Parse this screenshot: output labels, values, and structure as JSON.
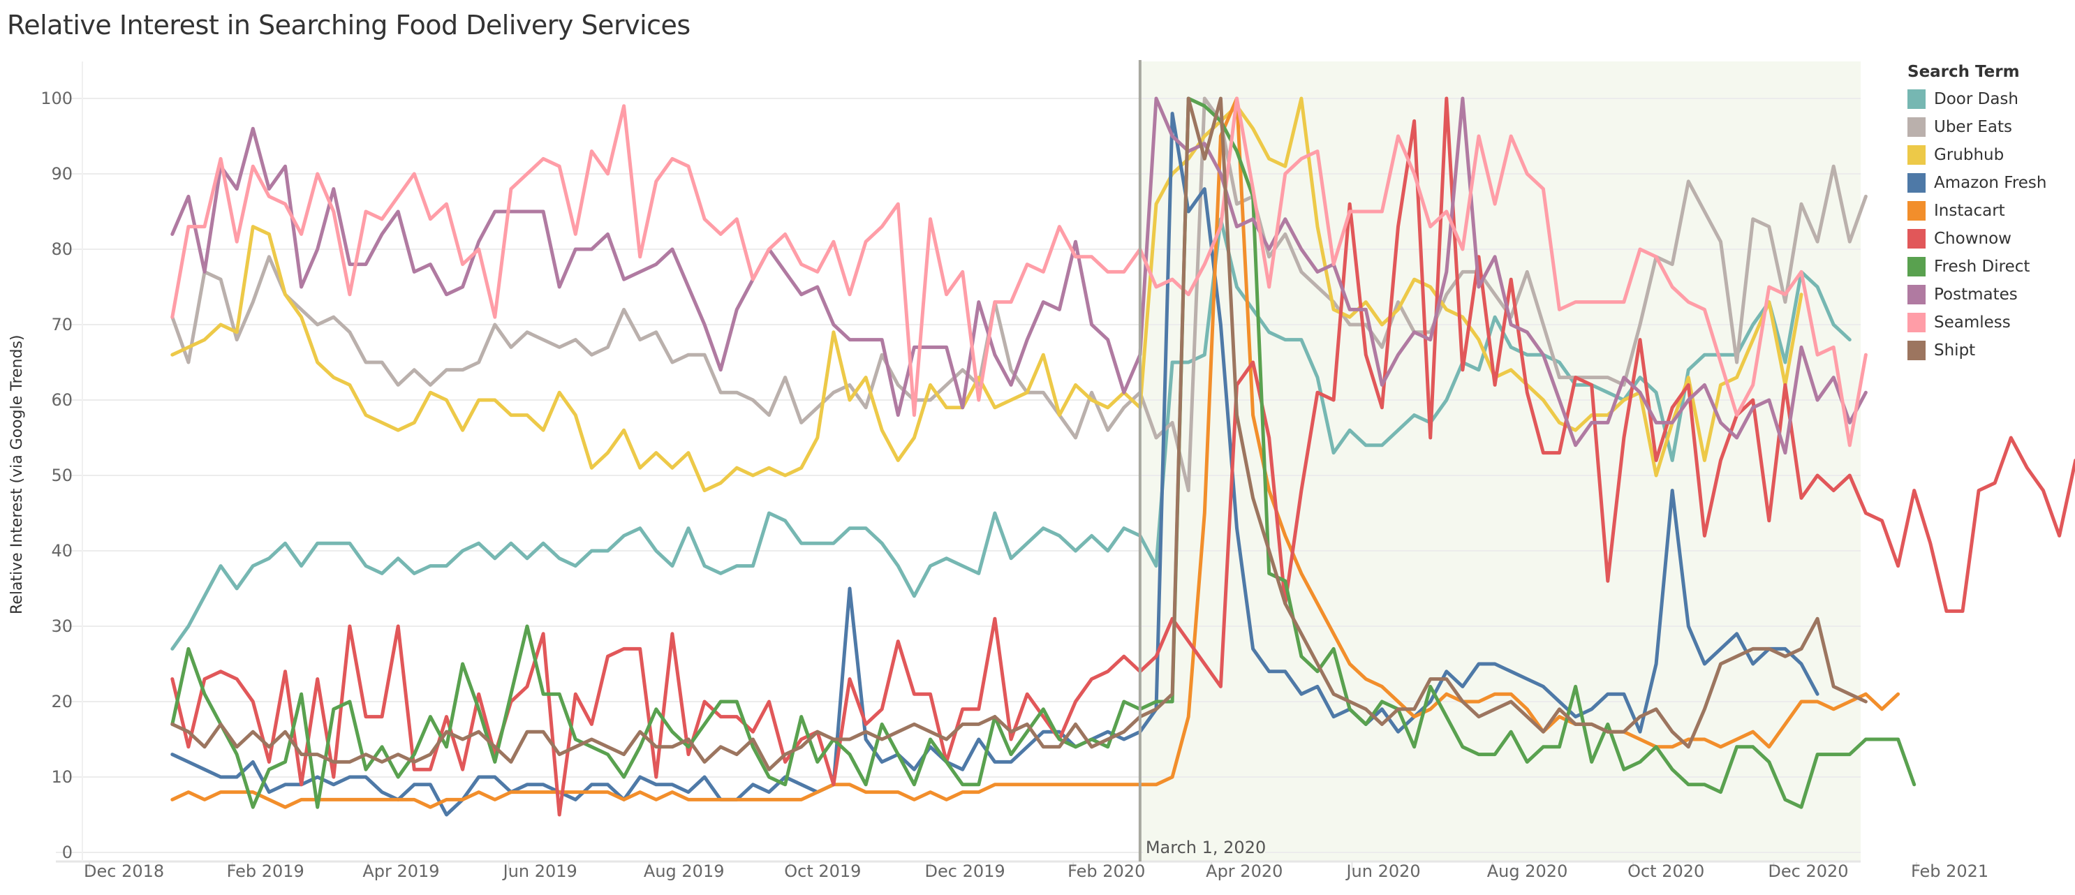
{
  "title": "Relative Interest in Searching Food Delivery Services",
  "legend": {
    "title": "Search Term",
    "items": [
      {
        "label": "Door Dash",
        "color": "#76b7b2"
      },
      {
        "label": "Uber Eats",
        "color": "#bab0ac"
      },
      {
        "label": "Grubhub",
        "color": "#edc948"
      },
      {
        "label": "Amazon Fresh",
        "color": "#4e79a7"
      },
      {
        "label": "Instacart",
        "color": "#f28e2b"
      },
      {
        "label": "Chownow",
        "color": "#e15759"
      },
      {
        "label": "Fresh Direct",
        "color": "#59a14f"
      },
      {
        "label": "Postmates",
        "color": "#b07aa1"
      },
      {
        "label": "Seamless",
        "color": "#ff9da7"
      },
      {
        "label": "Shipt",
        "color": "#9c755f"
      }
    ]
  },
  "annotation": {
    "label": "March 1, 2020",
    "date": "2020-03-01",
    "shade_color": "#f5f8ef",
    "line_color": "#a8a8a0"
  },
  "chart_data": {
    "type": "line",
    "title": "Relative Interest in Searching Food Delivery Services",
    "xlabel": "",
    "ylabel": "Relative Interest (via Google Trends)",
    "ylim": [
      0,
      100
    ],
    "yticks": [
      0,
      10,
      20,
      30,
      40,
      50,
      60,
      70,
      80,
      90,
      100
    ],
    "xticks": [
      "Dec 2018",
      "Feb 2019",
      "Apr 2019",
      "Jun 2019",
      "Aug 2019",
      "Oct 2019",
      "Dec 2019",
      "Feb 2020",
      "Apr 2020",
      "Jun 2020",
      "Aug 2020",
      "Oct 2020",
      "Dec 2020",
      "Feb 2021"
    ],
    "xrange": [
      "2018-12-01",
      "2021-02-01"
    ],
    "x_start": "2019-01-06",
    "x_step_days": 7,
    "grid": true,
    "legend_position": "right",
    "series": [
      {
        "name": "Door Dash",
        "values": [
          27,
          30,
          34,
          38,
          35,
          38,
          39,
          41,
          38,
          41,
          41,
          41,
          38,
          37,
          39,
          37,
          38,
          38,
          40,
          41,
          39,
          41,
          39,
          41,
          39,
          38,
          40,
          40,
          42,
          43,
          40,
          38,
          43,
          38,
          37,
          38,
          38,
          45,
          44,
          41,
          41,
          41,
          43,
          43,
          41,
          38,
          34,
          38,
          39,
          38,
          37,
          45,
          39,
          41,
          43,
          42,
          40,
          42,
          40,
          43,
          42,
          38,
          65,
          65,
          66,
          84,
          75,
          72,
          69,
          68,
          68,
          63,
          53,
          56,
          54,
          54,
          56,
          58,
          57,
          60,
          65,
          64,
          71,
          67,
          66,
          66,
          65,
          62,
          62,
          61,
          60,
          63,
          61,
          52,
          64,
          66,
          66,
          66,
          70,
          73,
          65,
          77,
          75,
          70,
          68
        ]
      },
      {
        "name": "Uber Eats",
        "values": [
          71,
          65,
          77,
          76,
          68,
          73,
          79,
          74,
          72,
          70,
          71,
          69,
          65,
          65,
          62,
          64,
          62,
          64,
          64,
          65,
          70,
          67,
          69,
          68,
          67,
          68,
          66,
          67,
          72,
          68,
          69,
          65,
          66,
          66,
          61,
          61,
          60,
          58,
          63,
          57,
          59,
          61,
          62,
          59,
          66,
          62,
          60,
          60,
          62,
          64,
          62,
          73,
          64,
          61,
          61,
          58,
          55,
          61,
          56,
          59,
          61,
          55,
          57,
          48,
          100,
          97,
          86,
          87,
          79,
          82,
          77,
          75,
          73,
          70,
          70,
          67,
          73,
          69,
          69,
          74,
          77,
          77,
          74,
          71,
          77,
          70,
          63,
          63,
          63,
          63,
          62,
          70,
          79,
          78,
          89,
          85,
          81,
          65,
          84,
          83,
          73,
          86,
          81,
          91,
          81,
          87
        ]
      },
      {
        "name": "Grubhub",
        "values": [
          66,
          67,
          68,
          70,
          69,
          83,
          82,
          74,
          71,
          65,
          63,
          62,
          58,
          57,
          56,
          57,
          61,
          60,
          56,
          60,
          60,
          58,
          58,
          56,
          61,
          58,
          51,
          53,
          56,
          51,
          53,
          51,
          53,
          48,
          49,
          51,
          50,
          51,
          50,
          51,
          55,
          69,
          60,
          63,
          56,
          52,
          55,
          62,
          59,
          59,
          63,
          59,
          60,
          61,
          66,
          58,
          62,
          60,
          59,
          61,
          59,
          86,
          90,
          92,
          95,
          97,
          99,
          96,
          92,
          91,
          100,
          83,
          72,
          71,
          73,
          70,
          72,
          76,
          75,
          72,
          71,
          68,
          63,
          64,
          62,
          60,
          57,
          56,
          58,
          58,
          60,
          61,
          50,
          57,
          63,
          52,
          62,
          63,
          68,
          73,
          62,
          74
        ]
      },
      {
        "name": "Amazon Fresh",
        "values": [
          13,
          12,
          11,
          10,
          10,
          12,
          8,
          9,
          9,
          10,
          9,
          10,
          10,
          8,
          7,
          9,
          9,
          5,
          7,
          10,
          10,
          8,
          9,
          9,
          8,
          7,
          9,
          9,
          7,
          10,
          9,
          9,
          8,
          10,
          7,
          7,
          9,
          8,
          10,
          9,
          8,
          9,
          35,
          15,
          12,
          13,
          11,
          14,
          12,
          11,
          15,
          12,
          12,
          14,
          16,
          16,
          14,
          15,
          16,
          15,
          16,
          19,
          98,
          85,
          88,
          70,
          43,
          27,
          24,
          24,
          21,
          22,
          18,
          19,
          17,
          19,
          16,
          18,
          20,
          24,
          22,
          25,
          25,
          24,
          23,
          22,
          20,
          18,
          19,
          21,
          21,
          16,
          25,
          48,
          30,
          25,
          27,
          29,
          25,
          27,
          27,
          25,
          21
        ]
      },
      {
        "name": "Instacart",
        "values": [
          7,
          8,
          7,
          8,
          8,
          8,
          7,
          6,
          7,
          7,
          7,
          7,
          7,
          7,
          7,
          7,
          6,
          7,
          7,
          8,
          7,
          8,
          8,
          8,
          8,
          8,
          8,
          8,
          7,
          8,
          7,
          8,
          7,
          7,
          7,
          7,
          7,
          7,
          7,
          7,
          8,
          9,
          9,
          8,
          8,
          8,
          7,
          8,
          7,
          8,
          8,
          9,
          9,
          9,
          9,
          9,
          9,
          9,
          9,
          9,
          9,
          9,
          10,
          18,
          45,
          95,
          100,
          58,
          48,
          42,
          37,
          33,
          29,
          25,
          23,
          22,
          20,
          18,
          19,
          21,
          20,
          20,
          21,
          21,
          19,
          16,
          18,
          17,
          17,
          16,
          16,
          15,
          14,
          14,
          15,
          15,
          14,
          15,
          16,
          14,
          17,
          20,
          20,
          19,
          20,
          21,
          19,
          21
        ]
      },
      {
        "name": "Chownow",
        "values": [
          23,
          14,
          23,
          24,
          23,
          20,
          12,
          24,
          9,
          23,
          10,
          30,
          18,
          18,
          30,
          11,
          11,
          18,
          11,
          21,
          13,
          20,
          22,
          29,
          5,
          21,
          17,
          26,
          27,
          27,
          10,
          29,
          13,
          20,
          18,
          18,
          16,
          20,
          12,
          15,
          16,
          9,
          23,
          17,
          19,
          28,
          21,
          21,
          12,
          19,
          19,
          31,
          15,
          21,
          18,
          15,
          20,
          23,
          24,
          26,
          24,
          26,
          31,
          28,
          25,
          22,
          62,
          65,
          55,
          33,
          48,
          61,
          60,
          86,
          66,
          59,
          83,
          97,
          55,
          100,
          64,
          79,
          62,
          76,
          61,
          53,
          53,
          63,
          62,
          36,
          55,
          68,
          52,
          59,
          62,
          42,
          52,
          58,
          60,
          44,
          62,
          47,
          50,
          48,
          50,
          45,
          44,
          38,
          48,
          41,
          32,
          32,
          48,
          49,
          55,
          51,
          48,
          42,
          52
        ]
      },
      {
        "name": "Fresh Direct",
        "values": [
          17,
          27,
          21,
          17,
          13,
          6,
          11,
          12,
          21,
          6,
          19,
          20,
          11,
          14,
          10,
          13,
          18,
          14,
          25,
          19,
          12,
          21,
          30,
          21,
          21,
          15,
          14,
          13,
          10,
          14,
          19,
          16,
          14,
          17,
          20,
          20,
          14,
          10,
          9,
          18,
          12,
          15,
          13,
          9,
          17,
          13,
          9,
          15,
          12,
          9,
          9,
          18,
          13,
          16,
          19,
          15,
          14,
          15,
          14,
          20,
          19,
          20,
          20,
          100,
          99,
          97,
          93,
          87,
          37,
          36,
          26,
          24,
          27,
          19,
          17,
          20,
          19,
          14,
          22,
          18,
          14,
          13,
          13,
          16,
          12,
          14,
          14,
          22,
          12,
          17,
          11,
          12,
          14,
          11,
          9,
          9,
          8,
          14,
          14,
          12,
          7,
          6,
          13,
          13,
          13,
          15,
          15,
          15,
          9
        ]
      },
      {
        "name": "Postmates",
        "values": [
          82,
          87,
          77,
          91,
          88,
          96,
          88,
          91,
          75,
          80,
          88,
          78,
          78,
          82,
          85,
          77,
          78,
          74,
          75,
          81,
          85,
          85,
          85,
          85,
          75,
          80,
          80,
          82,
          76,
          77,
          78,
          80,
          75,
          70,
          64,
          72,
          76,
          80,
          77,
          74,
          75,
          70,
          68,
          68,
          68,
          58,
          67,
          67,
          67,
          59,
          73,
          66,
          62,
          68,
          73,
          72,
          81,
          70,
          68,
          61,
          66,
          100,
          95,
          93,
          94,
          90,
          83,
          84,
          80,
          84,
          80,
          77,
          78,
          72,
          72,
          62,
          66,
          69,
          68,
          77,
          100,
          75,
          79,
          70,
          69,
          66,
          60,
          54,
          57,
          57,
          63,
          61,
          57,
          57,
          60,
          62,
          57,
          55,
          59,
          60,
          53,
          67,
          60,
          63,
          57,
          61
        ]
      },
      {
        "name": "Seamless",
        "values": [
          71,
          83,
          83,
          92,
          81,
          91,
          87,
          86,
          82,
          90,
          85,
          74,
          85,
          84,
          87,
          90,
          84,
          86,
          78,
          80,
          71,
          88,
          90,
          92,
          91,
          82,
          93,
          90,
          99,
          79,
          89,
          92,
          91,
          84,
          82,
          84,
          76,
          80,
          82,
          78,
          77,
          81,
          74,
          81,
          83,
          86,
          58,
          84,
          74,
          77,
          60,
          73,
          73,
          78,
          77,
          83,
          79,
          79,
          77,
          77,
          80,
          75,
          76,
          74,
          78,
          83,
          100,
          88,
          75,
          90,
          92,
          93,
          78,
          85,
          85,
          85,
          95,
          90,
          83,
          85,
          80,
          95,
          86,
          95,
          90,
          88,
          72,
          73,
          73,
          73,
          73,
          80,
          79,
          75,
          73,
          72,
          65,
          58,
          62,
          75,
          74,
          77,
          66,
          67,
          54,
          66
        ]
      },
      {
        "name": "Shipt",
        "values": [
          17,
          16,
          14,
          17,
          14,
          16,
          14,
          16,
          13,
          13,
          12,
          12,
          13,
          12,
          13,
          12,
          13,
          16,
          15,
          16,
          14,
          12,
          16,
          16,
          13,
          14,
          15,
          14,
          13,
          16,
          14,
          14,
          15,
          12,
          14,
          13,
          15,
          11,
          13,
          14,
          16,
          15,
          15,
          16,
          15,
          16,
          17,
          16,
          15,
          17,
          17,
          18,
          16,
          17,
          14,
          14,
          17,
          14,
          15,
          16,
          18,
          19,
          21,
          100,
          92,
          100,
          58,
          47,
          40,
          33,
          29,
          25,
          21,
          20,
          19,
          17,
          19,
          19,
          23,
          23,
          20,
          18,
          19,
          20,
          18,
          16,
          19,
          17,
          17,
          16,
          16,
          18,
          19,
          16,
          14,
          19,
          25,
          26,
          27,
          27,
          26,
          27,
          31,
          22,
          21,
          20
        ]
      }
    ]
  }
}
